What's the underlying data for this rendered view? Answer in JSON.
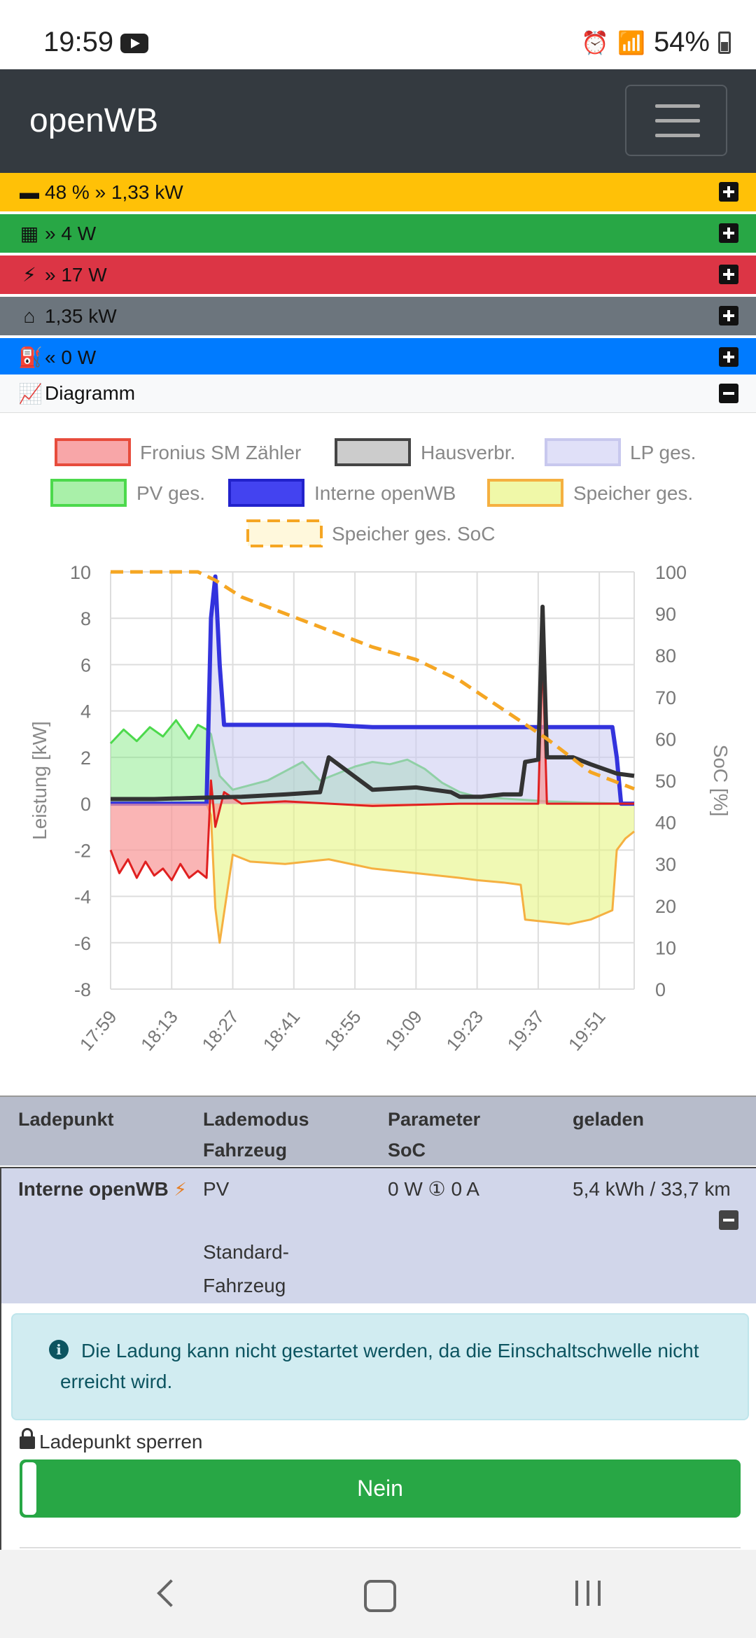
{
  "status_bar": {
    "time": "19:59",
    "battery": "54%",
    "icons": [
      "youtube-icon",
      "alarm-icon",
      "wifi-icon",
      "signal-icon",
      "battery-icon"
    ]
  },
  "navbar": {
    "brand": "openWB"
  },
  "overview": {
    "battery": {
      "text": "48 % » 1,33 kW",
      "color": "#ffc107",
      "icon": "battery-icon"
    },
    "pv": {
      "text": "» 4 W",
      "color": "#28a745",
      "icon": "solar-panel-icon"
    },
    "grid": {
      "text": "» 17 W",
      "color": "#dc3545",
      "icon": "power-tower-icon"
    },
    "house": {
      "text": "1,35 kW",
      "color": "#6c757d",
      "icon": "home-icon"
    },
    "chargepoint": {
      "text": "« 0 W",
      "color": "#007bff",
      "icon": "charging-station-icon"
    },
    "diagram": {
      "text": "Diagramm",
      "icon": "area-chart-icon"
    }
  },
  "chart_data": {
    "type": "area",
    "legend": [
      {
        "name": "Fronius SM Zähler",
        "fill": "#f8a6a8",
        "stroke": "#e74c3c",
        "dashed": false
      },
      {
        "name": "Hausverbr.",
        "fill": "#cccccc",
        "stroke": "#444444",
        "dashed": false
      },
      {
        "name": "LP ges.",
        "fill": "#e0e0f8",
        "stroke": "#c8c8ee",
        "dashed": false
      },
      {
        "name": "PV ges.",
        "fill": "#a9f0a9",
        "stroke": "#4cd94c",
        "dashed": false
      },
      {
        "name": "Interne openWB",
        "fill": "#4343f0",
        "stroke": "#2222cc",
        "dashed": false
      },
      {
        "name": "Speicher ges.",
        "fill": "#f0f8a8",
        "stroke": "#f5b041",
        "dashed": false
      },
      {
        "name": "Speicher ges. SoC",
        "fill": "#fff8dc",
        "stroke": "#f5a623",
        "dashed": true
      }
    ],
    "ylabel": "Leistung [kW]",
    "y2label": "SoC [%]",
    "ylim": [
      -8,
      10
    ],
    "y2lim": [
      0,
      100
    ],
    "y_ticks": [
      "10",
      "8",
      "6",
      "4",
      "2",
      "0",
      "-2",
      "-4",
      "-6",
      "-8"
    ],
    "y2_ticks": [
      "100",
      "90",
      "80",
      "70",
      "60",
      "50",
      "40",
      "30",
      "20",
      "10",
      "0"
    ],
    "x_ticks": [
      "17:59",
      "18:13",
      "18:27",
      "18:41",
      "18:55",
      "19:09",
      "19:23",
      "19:37",
      "19:51"
    ],
    "x_minutes": [
      0,
      14,
      28,
      42,
      56,
      70,
      84,
      98,
      112
    ],
    "x_range_minutes": [
      0,
      120
    ],
    "series": [
      {
        "name": "PV ges.",
        "x": [
          0,
          3,
          6,
          9,
          12,
          15,
          18,
          20,
          22,
          23,
          25,
          28,
          32,
          36,
          40,
          44,
          48,
          52,
          56,
          60,
          64,
          68,
          72,
          76,
          80,
          84,
          88,
          92,
          96,
          100,
          104,
          108,
          112,
          116,
          120
        ],
        "values": [
          2.6,
          3.2,
          2.7,
          3.3,
          2.9,
          3.6,
          2.8,
          3.4,
          3.2,
          3.0,
          1.2,
          0.6,
          0.8,
          1.0,
          1.4,
          1.8,
          1.0,
          1.3,
          1.6,
          1.8,
          1.7,
          1.9,
          1.5,
          0.9,
          0.5,
          0.3,
          0.25,
          0.2,
          0.15,
          0.1,
          0.08,
          0.05,
          0.03,
          0.01,
          0.0
        ]
      },
      {
        "name": "LP ges.",
        "x": [
          0,
          22,
          23,
          24,
          25,
          26,
          28,
          40,
          50,
          60,
          70,
          80,
          90,
          100,
          110,
          115,
          116,
          117,
          120
        ],
        "values": [
          0,
          0,
          8,
          9.8,
          6,
          3.4,
          3.4,
          3.4,
          3.4,
          3.3,
          3.3,
          3.3,
          3.3,
          3.3,
          3.3,
          3.3,
          2.0,
          0,
          0
        ]
      },
      {
        "name": "Speicher ges.",
        "x": [
          0,
          22,
          23,
          24,
          25,
          28,
          32,
          40,
          50,
          60,
          70,
          80,
          84,
          90,
          94,
          95,
          100,
          105,
          110,
          115,
          116,
          118,
          120
        ],
        "values": [
          0,
          0,
          -0.5,
          -4.5,
          -6.0,
          -2.2,
          -2.5,
          -2.6,
          -2.4,
          -2.8,
          -3.0,
          -3.2,
          -3.3,
          -3.4,
          -3.5,
          -5.0,
          -5.1,
          -5.2,
          -5.0,
          -4.6,
          -2.0,
          -1.5,
          -1.2
        ]
      },
      {
        "name": "Fronius SM Zähler",
        "x": [
          0,
          2,
          4,
          6,
          8,
          10,
          12,
          14,
          16,
          18,
          20,
          22,
          23,
          24,
          26,
          30,
          40,
          60,
          80,
          98,
          99,
          100,
          120
        ],
        "values": [
          -2.0,
          -3.0,
          -2.4,
          -3.2,
          -2.5,
          -3.1,
          -2.8,
          -3.3,
          -2.6,
          -3.2,
          -2.9,
          -3.2,
          1.0,
          -1.0,
          0.5,
          0.0,
          0.1,
          -0.1,
          0.0,
          0.0,
          6.5,
          0.0,
          0.0
        ]
      },
      {
        "name": "Hausverbr.",
        "x": [
          0,
          10,
          20,
          30,
          40,
          48,
          50,
          60,
          70,
          78,
          80,
          85,
          90,
          94,
          95,
          98,
          99,
          100,
          106,
          110,
          116,
          120
        ],
        "values": [
          0.2,
          0.2,
          0.25,
          0.3,
          0.4,
          0.5,
          2.0,
          0.6,
          0.7,
          0.5,
          0.3,
          0.3,
          0.4,
          0.4,
          1.8,
          1.9,
          8.5,
          2.0,
          2.0,
          1.7,
          1.3,
          1.2
        ]
      },
      {
        "name": "Speicher ges. SoC",
        "axis": "y2",
        "x": [
          0,
          10,
          20,
          24,
          30,
          40,
          50,
          60,
          70,
          80,
          90,
          100,
          110,
          120
        ],
        "values": [
          100,
          100,
          100,
          98,
          94,
          90,
          86,
          82,
          79,
          74,
          67,
          60,
          52,
          48
        ]
      }
    ]
  },
  "table": {
    "headers": [
      [
        "Ladepunkt"
      ],
      [
        "Lademodus",
        "Fahrzeug"
      ],
      [
        "Parameter",
        "SoC"
      ],
      [
        "geladen"
      ]
    ],
    "row": {
      "name": "Interne openWB",
      "mode": "PV",
      "vehicle_line1": "Standard-",
      "vehicle_line2": "Fahrzeug",
      "params": "0 W ① 0 A",
      "charged": "5,4 kWh / 33,7 km"
    }
  },
  "detail": {
    "alert": "Die Ladung kann nicht gestartet werden, da die Einschaltschwelle nicht erreicht wird.",
    "lock_label": "Ladepunkt sperren",
    "lock_value": "Nein"
  }
}
